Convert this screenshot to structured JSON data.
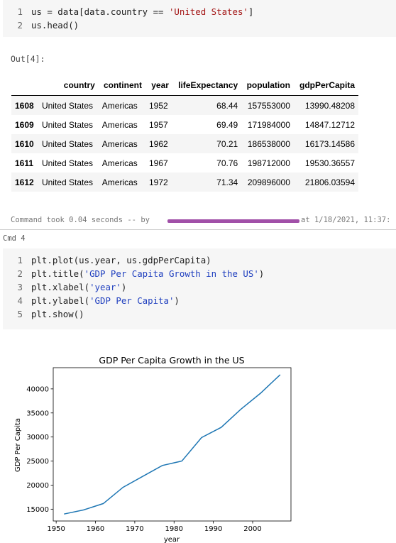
{
  "cell1": {
    "lines": [
      {
        "num": "1",
        "pre": "us = data[data.country == ",
        "str": "'United States'",
        "post": "]"
      },
      {
        "num": "2",
        "pre": "us.head()",
        "str": "",
        "post": ""
      }
    ]
  },
  "output": {
    "label": "Out[4]:",
    "columns": [
      "",
      "country",
      "continent",
      "year",
      "lifeExpectancy",
      "population",
      "gdpPerCapita"
    ],
    "rows": [
      [
        "1608",
        "United States",
        "Americas",
        "1952",
        "68.44",
        "157553000",
        "13990.48208"
      ],
      [
        "1609",
        "United States",
        "Americas",
        "1957",
        "69.49",
        "171984000",
        "14847.12712"
      ],
      [
        "1610",
        "United States",
        "Americas",
        "1962",
        "70.21",
        "186538000",
        "16173.14586"
      ],
      [
        "1611",
        "United States",
        "Americas",
        "1967",
        "70.76",
        "198712000",
        "19530.36557"
      ],
      [
        "1612",
        "United States",
        "Americas",
        "1972",
        "71.34",
        "209896000",
        "21806.03594"
      ]
    ]
  },
  "command_took": {
    "prefix": "Command took 0.04 seconds -- by",
    "suffix": "at 1/18/2021, 11:37:"
  },
  "cmd_label": "Cmd 4",
  "cell2": {
    "lines": [
      {
        "num": "1",
        "pre": "plt.plot(us.year, us.gdpPerCapita)",
        "str": "",
        "post": ""
      },
      {
        "num": "2",
        "pre": "plt.title(",
        "str": "'GDP Per Capita Growth in the US'",
        "post": ")"
      },
      {
        "num": "3",
        "pre": "plt.xlabel(",
        "str": "'year'",
        "post": ")"
      },
      {
        "num": "4",
        "pre": "plt.ylabel(",
        "str": "'GDP Per Capita'",
        "post": ")"
      },
      {
        "num": "5",
        "pre": "plt.show()",
        "str": "",
        "post": ""
      }
    ]
  },
  "chart_data": {
    "type": "line",
    "title": "GDP Per Capita Growth in the US",
    "xlabel": "year",
    "ylabel": "GDP Per Capita",
    "xlim": [
      1949.25,
      2009.75
    ],
    "ylim": [
      12545,
      44406
    ],
    "xticks": [
      1950,
      1960,
      1970,
      1980,
      1990,
      2000
    ],
    "yticks": [
      15000,
      20000,
      25000,
      30000,
      35000,
      40000
    ],
    "grid": false,
    "line_color": "#1f77b4",
    "x": [
      1952,
      1957,
      1962,
      1967,
      1972,
      1977,
      1982,
      1987,
      1992,
      1997,
      2002,
      2007
    ],
    "y": [
      13990,
      14847,
      16173,
      19530,
      21806,
      24073,
      25010,
      29884,
      32004,
      35767,
      39097,
      42952
    ]
  }
}
